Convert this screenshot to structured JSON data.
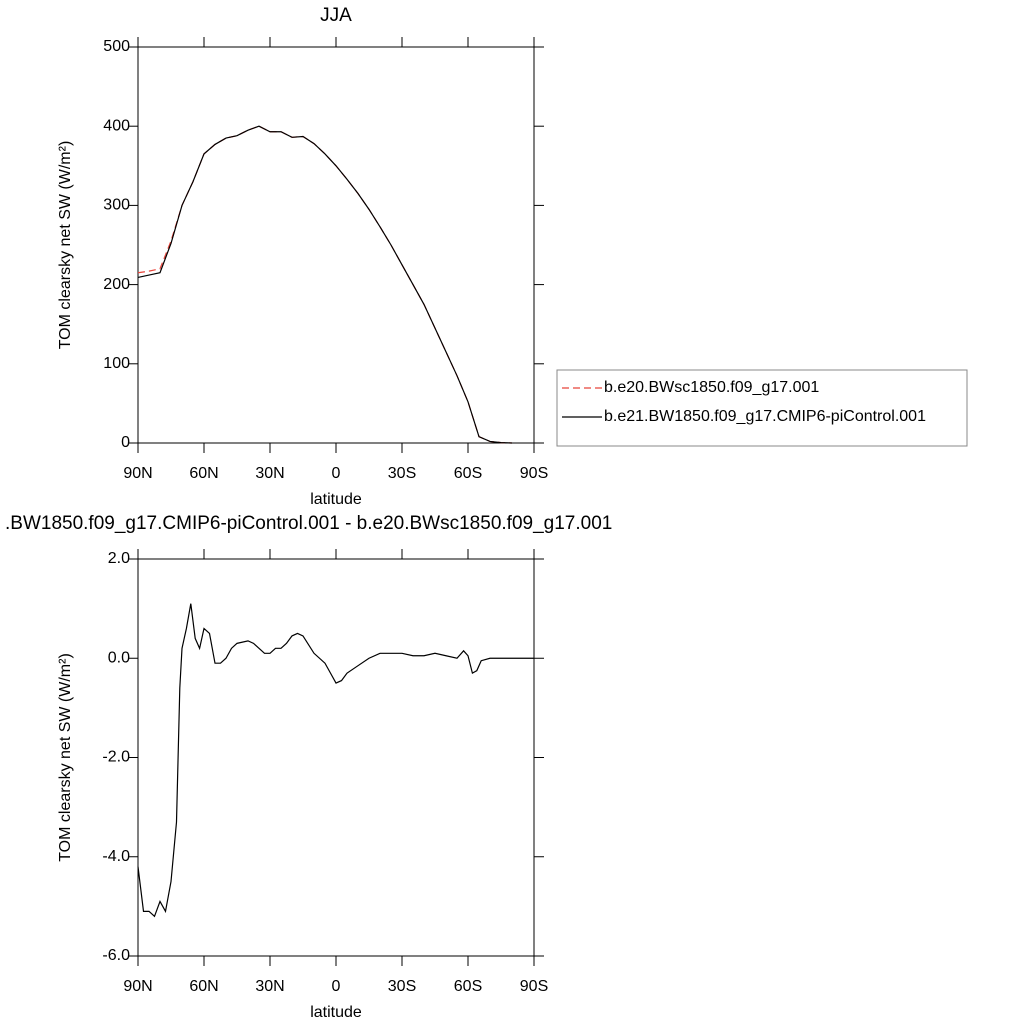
{
  "chart_data": [
    {
      "type": "line",
      "title": "JJA",
      "x_label": "latitude",
      "y_label": "TOM clearsky net SW (W/m²)",
      "x": [
        90,
        85,
        80,
        75,
        70,
        65,
        60,
        55,
        50,
        45,
        40,
        35,
        30,
        25,
        20,
        15,
        10,
        5,
        0,
        -5,
        -10,
        -15,
        -20,
        -25,
        -30,
        -35,
        -40,
        -45,
        -50,
        -55,
        -60,
        -65,
        -70,
        -75,
        -80
      ],
      "series": [
        {
          "name": "b.e20.BWsc1850.f09_g17.001",
          "color": "#e8443a",
          "dashed": true,
          "values": [
            215,
            217,
            220,
            255,
            300,
            330,
            365,
            377,
            385,
            388,
            395,
            400,
            393,
            393,
            386,
            387,
            378,
            365,
            350,
            333,
            315,
            295,
            273,
            250,
            225,
            200,
            175,
            145,
            115,
            85,
            52,
            8,
            2,
            0.5,
            0
          ]
        },
        {
          "name": "b.e21.BW1850.f09_g17.CMIP6-piControl.001",
          "color": "#000000",
          "dashed": false,
          "values": [
            209,
            212,
            215,
            252,
            300,
            330,
            365,
            377,
            385,
            388,
            395,
            400,
            393,
            393,
            386,
            387,
            378,
            365,
            350,
            333,
            315,
            295,
            273,
            250,
            225,
            200,
            175,
            145,
            115,
            85,
            52,
            8,
            2,
            0.5,
            0
          ]
        }
      ],
      "xlim": [
        90,
        -90
      ],
      "ylim": [
        0,
        500
      ],
      "xticks": [
        {
          "value": 90,
          "label": "90N"
        },
        {
          "value": 60,
          "label": "60N"
        },
        {
          "value": 30,
          "label": "30N"
        },
        0,
        {
          "value": -30,
          "label": "30S"
        },
        {
          "value": -60,
          "label": "60S"
        },
        {
          "value": -90,
          "label": "90S"
        }
      ],
      "yticks": [
        0,
        100,
        200,
        300,
        400,
        500
      ],
      "legend": "right"
    },
    {
      "type": "line",
      "title": ".BW1850.f09_g17.CMIP6-piControl.001 - b.e20.BWsc1850.f09_g17.001",
      "x_label": "latitude",
      "y_label": "TOM clearsky net SW (W/m²)",
      "x": [
        90,
        87.5,
        85,
        82.5,
        80,
        77.5,
        75,
        72.5,
        71,
        70,
        68,
        66,
        64,
        62,
        60,
        57.5,
        55,
        52.5,
        50,
        47.5,
        45,
        40,
        37.5,
        35,
        32.5,
        30,
        27.5,
        25,
        22.5,
        20,
        17.5,
        15,
        10,
        5,
        2.5,
        0,
        -2.5,
        -5,
        -10,
        -15,
        -20,
        -25,
        -30,
        -35,
        -40,
        -45,
        -50,
        -55,
        -58,
        -60,
        -62,
        -64,
        -66,
        -70,
        -80,
        -90
      ],
      "series": [
        {
          "color": "#000000",
          "dashed": false,
          "values": [
            -4.2,
            -5.1,
            -5.1,
            -5.2,
            -4.9,
            -5.1,
            -4.5,
            -3.3,
            -0.6,
            0.2,
            0.6,
            1.1,
            0.4,
            0.2,
            0.6,
            0.5,
            -0.1,
            -0.1,
            0.0,
            0.2,
            0.3,
            0.35,
            0.3,
            0.2,
            0.1,
            0.1,
            0.2,
            0.2,
            0.3,
            0.45,
            0.5,
            0.45,
            0.1,
            -0.1,
            -0.3,
            -0.5,
            -0.45,
            -0.3,
            -0.15,
            0.0,
            0.1,
            0.1,
            0.1,
            0.05,
            0.05,
            0.1,
            0.05,
            0.0,
            0.15,
            0.05,
            -0.3,
            -0.25,
            -0.05,
            0.0,
            0.0,
            0.0
          ]
        }
      ],
      "xlim": [
        90,
        -90
      ],
      "ylim": [
        -6,
        2
      ],
      "xticks": [
        {
          "value": 90,
          "label": "90N"
        },
        {
          "value": 60,
          "label": "60N"
        },
        {
          "value": 30,
          "label": "30N"
        },
        0,
        {
          "value": -30,
          "label": "30S"
        },
        {
          "value": -60,
          "label": "60S"
        },
        {
          "value": -90,
          "label": "90S"
        }
      ],
      "yticks": [
        {
          "value": -6,
          "label": "-6.0"
        },
        {
          "value": -4,
          "label": "-4.0"
        },
        {
          "value": -2,
          "label": "-2.0"
        },
        {
          "value": 0,
          "label": "0.0"
        },
        {
          "value": 2,
          "label": "2.0"
        }
      ]
    }
  ]
}
